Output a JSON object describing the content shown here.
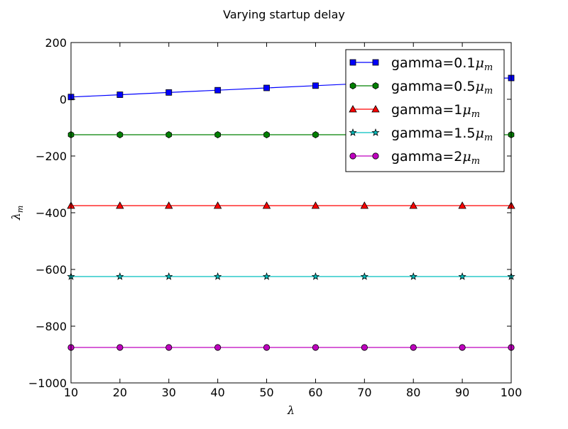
{
  "chart_data": {
    "type": "line",
    "title": "Varying startup delay",
    "xlabel": "λ",
    "ylabel": "λ",
    "ylabel_sub": "m",
    "xlim": [
      10,
      100
    ],
    "ylim": [
      -1000,
      200
    ],
    "xticks": [
      10,
      20,
      30,
      40,
      50,
      60,
      70,
      80,
      90,
      100
    ],
    "yticks": [
      200,
      0,
      -200,
      -400,
      -600,
      -800,
      -1000
    ],
    "ytick_labels": [
      "200",
      "0",
      "−200",
      "−400",
      "−600",
      "−800",
      "−1000"
    ],
    "grid": false,
    "legend_position": "top-right",
    "x": [
      10,
      20,
      30,
      40,
      50,
      60,
      70,
      80,
      90,
      100
    ],
    "series": [
      {
        "name": "gamma=0.1",
        "name_suffix": "μ",
        "name_sub": "m",
        "color": "#0000ff",
        "marker": "square",
        "values": [
          8,
          16,
          24,
          32,
          40,
          48,
          56,
          64,
          72,
          75
        ]
      },
      {
        "name": "gamma=0.5",
        "name_suffix": "μ",
        "name_sub": "m",
        "color": "#008000",
        "marker": "hexagon",
        "values": [
          -125,
          -125,
          -125,
          -125,
          -125,
          -125,
          -125,
          -125,
          -125,
          -125
        ]
      },
      {
        "name": "gamma=1",
        "name_suffix": "μ",
        "name_sub": "m",
        "color": "#ff0000",
        "marker": "triangle",
        "values": [
          -375,
          -375,
          -375,
          -375,
          -375,
          -375,
          -375,
          -375,
          -375,
          -375
        ]
      },
      {
        "name": "gamma=1.5",
        "name_suffix": "μ",
        "name_sub": "m",
        "color": "#00bfbf",
        "marker": "star",
        "values": [
          -625,
          -625,
          -625,
          -625,
          -625,
          -625,
          -625,
          -625,
          -625,
          -625
        ]
      },
      {
        "name": "gamma=2",
        "name_suffix": "μ",
        "name_sub": "m",
        "color": "#bf00bf",
        "marker": "circle",
        "values": [
          -875,
          -875,
          -875,
          -875,
          -875,
          -875,
          -875,
          -875,
          -875,
          -875
        ]
      }
    ]
  }
}
